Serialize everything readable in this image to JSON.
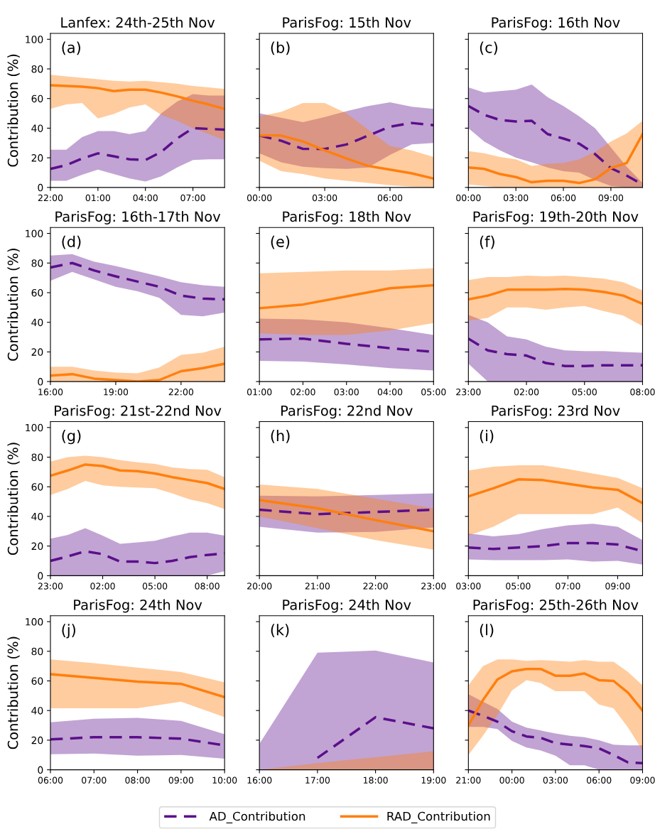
{
  "chart_data": [
    {
      "type": "line",
      "title": "Lanfex: 24th-25th Nov",
      "ylabel": "Contribution (%)",
      "annotations": [
        "(a)"
      ],
      "categories": [
        "22:00",
        null,
        null,
        "01:00",
        null,
        null,
        "04:00",
        null,
        null,
        "07:00",
        null,
        null
      ],
      "ylim": [
        0,
        104
      ],
      "yticks": [
        0,
        20,
        40,
        60,
        80,
        100
      ],
      "series": [
        {
          "color": "#5b0f8b",
          "line_style": "dashed",
          "values": [
            12.5,
            15,
            19.5,
            23,
            21,
            19,
            18.5,
            24,
            33,
            40,
            39.5,
            39
          ],
          "lower": [
            4.5,
            4.5,
            8.5,
            12,
            9,
            6,
            4,
            7.5,
            13.5,
            18.5,
            19,
            19
          ],
          "upper": [
            25.5,
            25.5,
            34,
            38,
            38,
            36,
            38,
            50,
            58,
            63,
            62,
            62
          ]
        },
        {
          "color": "#ff7f0e",
          "line_style": "solid",
          "values": [
            69,
            68.5,
            68,
            67,
            65,
            66,
            66,
            64,
            61.5,
            58.5,
            56,
            53
          ],
          "lower": [
            53,
            56,
            57,
            46.5,
            49.5,
            54,
            56,
            49,
            45,
            40,
            36,
            32
          ],
          "upper": [
            76,
            75,
            74,
            73,
            72,
            71.5,
            72,
            71,
            70,
            68.5,
            67.5,
            66.5
          ]
        }
      ]
    },
    {
      "type": "line",
      "title": "ParisFog: 15th Nov",
      "tick_labels": "x",
      "annotations": [
        "(b)"
      ],
      "x": [
        0,
        1,
        2,
        3,
        4,
        5,
        6,
        7,
        8
      ],
      "xlim": [
        0,
        8
      ],
      "xticks": [
        {
          "value": 0,
          "label": "00:00"
        },
        {
          "value": 3,
          "label": "03:00"
        },
        {
          "value": 6,
          "label": "06:00"
        }
      ],
      "ylim": [
        0,
        104
      ],
      "yticks": [
        0,
        20,
        40,
        60,
        80,
        100
      ],
      "series": [
        {
          "color": "#5b0f8b",
          "line_style": "dashed",
          "values": [
            35,
            31.5,
            26,
            26,
            29,
            35,
            41,
            43.5,
            42
          ],
          "lower": [
            23,
            17,
            14,
            13,
            12.5,
            13.5,
            22,
            29,
            30
          ],
          "upper": [
            50,
            47,
            44,
            47.5,
            51.5,
            55,
            57.5,
            54.5,
            53
          ]
        },
        {
          "color": "#ff7f0e",
          "line_style": "solid",
          "values": [
            35,
            35,
            31,
            25,
            19.5,
            14.5,
            12,
            9.5,
            6
          ],
          "lower": [
            18,
            11,
            9,
            6,
            4.5,
            3,
            1.5,
            0.5,
            0
          ],
          "upper": [
            48,
            51,
            57,
            57,
            50,
            39,
            28,
            25,
            20.5
          ]
        }
      ]
    },
    {
      "type": "line",
      "title": "ParisFog: 16th Nov",
      "tick_labels": "x",
      "annotations": [
        "(c)"
      ],
      "x": [
        0,
        1,
        2,
        3,
        4,
        5,
        6,
        7,
        8,
        9,
        10,
        11
      ],
      "xlim": [
        0,
        11
      ],
      "xticks": [
        {
          "value": 0,
          "label": "00:00"
        },
        {
          "value": 3,
          "label": "03:00"
        },
        {
          "value": 6,
          "label": "06:00"
        },
        {
          "value": 9,
          "label": "09:00"
        }
      ],
      "ylim": [
        0,
        104
      ],
      "yticks": [
        0,
        20,
        40,
        60,
        80,
        100
      ],
      "series": [
        {
          "color": "#5b0f8b",
          "line_style": "dashed",
          "values": [
            55,
            49,
            45.5,
            44.5,
            45,
            36,
            33,
            29.5,
            22.5,
            13,
            8,
            2
          ],
          "lower": [
            40,
            31,
            25,
            20,
            17,
            13.5,
            11,
            10,
            5,
            1,
            0,
            0
          ],
          "upper": [
            67.5,
            64,
            65,
            66,
            69.5,
            61,
            55,
            48,
            40,
            27,
            14,
            3
          ]
        },
        {
          "color": "#ff7f0e",
          "line_style": "solid",
          "values": [
            13.5,
            12.5,
            9,
            7,
            3.5,
            4.5,
            4.5,
            3,
            5.5,
            13,
            16.5,
            36
          ],
          "lower": [
            2,
            1,
            0,
            0,
            0,
            0,
            0,
            0,
            0,
            0,
            0,
            0
          ],
          "upper": [
            24.5,
            23,
            20.5,
            19,
            14.5,
            16,
            16.5,
            19,
            24,
            31,
            36.5,
            45
          ]
        }
      ]
    },
    {
      "type": "line",
      "title": "ParisFog: 16th-17th Nov",
      "ylabel": "Contribution (%)",
      "annotations": [
        "(d)"
      ],
      "x": [
        16,
        17,
        18,
        19,
        20,
        21,
        22,
        23,
        24
      ],
      "xlim": [
        16,
        24
      ],
      "xticks": [
        {
          "value": 16,
          "label": "16:00"
        },
        {
          "value": 19,
          "label": "19:00"
        },
        {
          "value": 22,
          "label": "22:00"
        }
      ],
      "ylim": [
        0,
        104
      ],
      "yticks": [
        0,
        20,
        40,
        60,
        80,
        100
      ],
      "series": [
        {
          "color": "#5b0f8b",
          "line_style": "dashed",
          "values": [
            77,
            80,
            75,
            71,
            67.5,
            64,
            58,
            56,
            55.5
          ],
          "lower": [
            68,
            74,
            69,
            64,
            61,
            56.5,
            45,
            44,
            46.5
          ],
          "upper": [
            85,
            86,
            81,
            78,
            74.5,
            71,
            67,
            65,
            64
          ]
        },
        {
          "color": "#ff7f0e",
          "line_style": "solid",
          "values": [
            4,
            5,
            2,
            1,
            0,
            1,
            7,
            9,
            12
          ],
          "lower": [
            0,
            0,
            0,
            0,
            0,
            0,
            0,
            0,
            0
          ],
          "upper": [
            10,
            10,
            7.5,
            6,
            5.5,
            9.5,
            18,
            19.5,
            23.5
          ]
        }
      ]
    },
    {
      "type": "line",
      "title": "ParisFog: 18th Nov",
      "tick_labels": "x",
      "annotations": [
        "(e)"
      ],
      "x": [
        1,
        2,
        3,
        4,
        5
      ],
      "xlim": [
        1,
        5
      ],
      "xticks": [
        {
          "value": 1,
          "label": "01:00"
        },
        {
          "value": 2,
          "label": "02:00"
        },
        {
          "value": 3,
          "label": "03:00"
        },
        {
          "value": 4,
          "label": "04:00"
        },
        {
          "value": 5,
          "label": "05:00"
        }
      ],
      "ylim": [
        0,
        104
      ],
      "yticks": [
        0,
        20,
        40,
        60,
        80,
        100
      ],
      "series": [
        {
          "color": "#5b0f8b",
          "line_style": "dashed",
          "values": [
            28.5,
            29,
            25.5,
            22.5,
            20
          ],
          "lower": [
            14,
            13.5,
            11.5,
            9,
            7.5
          ],
          "upper": [
            42.5,
            42,
            40,
            36,
            31.5
          ]
        },
        {
          "color": "#ff7f0e",
          "line_style": "solid",
          "values": [
            49.5,
            52,
            57.5,
            63,
            65
          ],
          "lower": [
            32.5,
            31.5,
            31.5,
            34.5,
            39.5
          ],
          "upper": [
            73,
            74,
            75,
            75,
            76.5
          ]
        }
      ]
    },
    {
      "type": "line",
      "title": "ParisFog: 19th-20th Nov",
      "tick_labels": "x",
      "annotations": [
        "(f)"
      ],
      "categories": [
        "23:00",
        null,
        null,
        "02:00",
        null,
        null,
        "05:00",
        null,
        null,
        "08:00"
      ],
      "ylim": [
        0,
        104
      ],
      "yticks": [
        0,
        20,
        40,
        60,
        80,
        100
      ],
      "series": [
        {
          "color": "#5b0f8b",
          "line_style": "dashed",
          "values": [
            29,
            21,
            18.5,
            17.5,
            12.5,
            10.5,
            10.5,
            11,
            11,
            11
          ],
          "lower": [
            12,
            0,
            0,
            0,
            0,
            0,
            0,
            0,
            0,
            0
          ],
          "upper": [
            45,
            40,
            30.5,
            28.5,
            23.5,
            21,
            20.5,
            20.5,
            20,
            19.5
          ]
        },
        {
          "color": "#ff7f0e",
          "line_style": "solid",
          "values": [
            55.5,
            58,
            62,
            62,
            62,
            62.5,
            62,
            60.5,
            58,
            52.5
          ],
          "lower": [
            41,
            43,
            50,
            50,
            48.5,
            50,
            51,
            47.5,
            44.5,
            37.5
          ],
          "upper": [
            68.5,
            70.5,
            70.5,
            71.5,
            71,
            71.5,
            70.5,
            69.5,
            67,
            61.5
          ]
        }
      ]
    },
    {
      "type": "line",
      "title": "ParisFog: 21st-22nd Nov",
      "ylabel": "Contribution (%)",
      "annotations": [
        "(g)"
      ],
      "categories": [
        "23:00",
        null,
        null,
        "02:00",
        null,
        null,
        "05:00",
        null,
        null,
        "08:00",
        null
      ],
      "ylim": [
        0,
        104
      ],
      "yticks": [
        0,
        20,
        40,
        60,
        80,
        100
      ],
      "series": [
        {
          "color": "#5b0f8b",
          "line_style": "dashed",
          "values": [
            10,
            13,
            16.5,
            14.5,
            9.5,
            9.5,
            8.5,
            10,
            12.5,
            14,
            15
          ],
          "lower": [
            0,
            0,
            0,
            0,
            0,
            0,
            0,
            0,
            0,
            0,
            3
          ],
          "upper": [
            25,
            27.5,
            32,
            27,
            21.5,
            22.5,
            23.5,
            26.5,
            29,
            29,
            27
          ]
        },
        {
          "color": "#ff7f0e",
          "line_style": "solid",
          "values": [
            67.5,
            71,
            75,
            74,
            71,
            70.5,
            69,
            66.5,
            64.5,
            62.5,
            58.5
          ],
          "lower": [
            54.5,
            58.5,
            64,
            61,
            60,
            59.5,
            59,
            55.5,
            51.5,
            49,
            45
          ],
          "upper": [
            77,
            80,
            81,
            80,
            78,
            76.5,
            75.5,
            73,
            72,
            71.5,
            66.5
          ]
        }
      ]
    },
    {
      "type": "line",
      "title": "ParisFog: 22nd Nov",
      "tick_labels": "x",
      "annotations": [
        "(h)"
      ],
      "x": [
        20,
        21,
        22,
        23
      ],
      "xlim": [
        20,
        23
      ],
      "xticks": [
        {
          "value": 20,
          "label": "20:00"
        },
        {
          "value": 21,
          "label": "21:00"
        },
        {
          "value": 22,
          "label": "22:00"
        },
        {
          "value": 23,
          "label": "23:00"
        }
      ],
      "ylim": [
        0,
        104
      ],
      "yticks": [
        0,
        20,
        40,
        60,
        80,
        100
      ],
      "series": [
        {
          "color": "#5b0f8b",
          "line_style": "dashed",
          "values": [
            44.5,
            41.5,
            43,
            44.5
          ],
          "lower": [
            33,
            29,
            29.5,
            32.5
          ],
          "upper": [
            54,
            53.5,
            54.5,
            55.5
          ]
        },
        {
          "color": "#ff7f0e",
          "line_style": "solid",
          "values": [
            51,
            45.5,
            37.5,
            30
          ],
          "lower": [
            40,
            32,
            24,
            17.5
          ],
          "upper": [
            61.5,
            58.5,
            52,
            45.5
          ]
        }
      ]
    },
    {
      "type": "line",
      "title": "ParisFog: 23rd Nov",
      "tick_labels": "x",
      "annotations": [
        "(i)"
      ],
      "x": [
        3,
        4,
        5,
        6,
        7,
        8,
        9,
        10
      ],
      "xlim": [
        3,
        10
      ],
      "xticks": [
        {
          "value": 3,
          "label": "03:00"
        },
        {
          "value": 5,
          "label": "05:00"
        },
        {
          "value": 7,
          "label": "07:00"
        },
        {
          "value": 9,
          "label": "09:00"
        }
      ],
      "ylim": [
        0,
        104
      ],
      "yticks": [
        0,
        20,
        40,
        60,
        80,
        100
      ],
      "series": [
        {
          "color": "#5b0f8b",
          "line_style": "dashed",
          "values": [
            19,
            18,
            19,
            20,
            22,
            22,
            21,
            16.5
          ],
          "lower": [
            11,
            10.5,
            10.5,
            10.5,
            11,
            9.5,
            10,
            7.5
          ],
          "upper": [
            28.5,
            26.5,
            28,
            31.5,
            34,
            35,
            33,
            24
          ]
        },
        {
          "color": "#ff7f0e",
          "line_style": "solid",
          "values": [
            53.5,
            59,
            65,
            64.5,
            62,
            59.5,
            58,
            49
          ],
          "lower": [
            27,
            33,
            41.5,
            41.5,
            41.5,
            41.5,
            46,
            35.5
          ],
          "upper": [
            71,
            73.5,
            74.5,
            74.5,
            72,
            69,
            66,
            59
          ]
        }
      ]
    },
    {
      "type": "line",
      "title": "ParisFog: 24th Nov",
      "ylabel": "Contribution (%)",
      "annotations": [
        "(j)"
      ],
      "x": [
        6,
        7,
        8,
        9,
        10
      ],
      "xlim": [
        6,
        10
      ],
      "xticks": [
        {
          "value": 6,
          "label": "06:00"
        },
        {
          "value": 7,
          "label": "07:00"
        },
        {
          "value": 8,
          "label": "08:00"
        },
        {
          "value": 9,
          "label": "09:00"
        },
        {
          "value": 10,
          "label": "10:00"
        }
      ],
      "ylim": [
        0,
        104
      ],
      "yticks": [
        0,
        20,
        40,
        60,
        80,
        100
      ],
      "series": [
        {
          "color": "#5b0f8b",
          "line_style": "dashed",
          "values": [
            20.5,
            22,
            22,
            21,
            16.5
          ],
          "lower": [
            10.5,
            11,
            9.5,
            10,
            7.5
          ],
          "upper": [
            32,
            34.5,
            35,
            33,
            24
          ]
        },
        {
          "color": "#ff7f0e",
          "line_style": "solid",
          "values": [
            64.5,
            62,
            59.5,
            58,
            49
          ],
          "lower": [
            41.5,
            41.5,
            41.5,
            46,
            35.5
          ],
          "upper": [
            74.5,
            72,
            69,
            66,
            59
          ]
        }
      ]
    },
    {
      "type": "line",
      "title": "ParisFog: 24th Nov",
      "tick_labels": "x",
      "annotations": [
        "(k)"
      ],
      "x": [
        16,
        17,
        18,
        19
      ],
      "xlim": [
        16,
        19
      ],
      "xticks": [
        {
          "value": 16,
          "label": "16:00"
        },
        {
          "value": 17,
          "label": "17:00"
        },
        {
          "value": 18,
          "label": "18:00"
        },
        {
          "value": 19,
          "label": "19:00"
        }
      ],
      "ylim": [
        0,
        104
      ],
      "yticks": [
        0,
        20,
        40,
        60,
        80,
        100
      ],
      "series": [
        {
          "color": "#5b0f8b",
          "line_style": "dashed",
          "values": [
            null,
            8,
            35.5,
            28
          ],
          "lower": [
            0,
            0,
            0,
            0
          ],
          "upper": [
            17.5,
            79,
            80.5,
            72.5
          ]
        },
        {
          "color": "#ff7f0e",
          "line_style": "solid",
          "values": [
            null,
            null,
            null,
            null
          ],
          "lower": [
            0,
            0,
            0,
            0
          ],
          "upper": [
            0,
            4.5,
            8.5,
            12.5
          ]
        }
      ]
    },
    {
      "type": "line",
      "title": "ParisFog: 25th-26th Nov",
      "tick_labels": "x",
      "annotations": [
        "(l)"
      ],
      "legend": "bottom",
      "categories": [
        "21:00",
        null,
        null,
        "00:00",
        null,
        null,
        "03:00",
        null,
        null,
        "06:00",
        null,
        null,
        "09:00"
      ],
      "ylim": [
        0,
        104
      ],
      "yticks": [
        0,
        20,
        40,
        60,
        80,
        100
      ],
      "series": [
        {
          "name": "AD_Contribution",
          "color": "#5b0f8b",
          "line_style": "dashed",
          "values": [
            40,
            36.5,
            32.5,
            26,
            22.5,
            21.5,
            18,
            17,
            16,
            14.5,
            10,
            5,
            4.5
          ],
          "lower": [
            29,
            29,
            27.5,
            19.5,
            15,
            13,
            9.5,
            3,
            3,
            0,
            0,
            0,
            0
          ],
          "upper": [
            51,
            46,
            41,
            32.5,
            28.5,
            26.5,
            24.5,
            23,
            22,
            20,
            17,
            16.5,
            16.5
          ]
        },
        {
          "name": "RAD_Contribution",
          "color": "#ff7f0e",
          "line_style": "solid",
          "values": [
            30,
            47,
            61,
            66.5,
            68,
            68,
            63.5,
            63.5,
            65,
            60.5,
            60,
            52,
            40
          ],
          "lower": [
            10,
            23,
            37,
            53.5,
            60.5,
            58.5,
            53,
            53,
            53,
            44,
            41.5,
            28.5,
            13
          ],
          "upper": [
            57,
            70,
            74.5,
            74.5,
            73.5,
            74,
            73.5,
            73,
            74,
            73,
            73,
            66,
            57
          ]
        }
      ]
    }
  ]
}
